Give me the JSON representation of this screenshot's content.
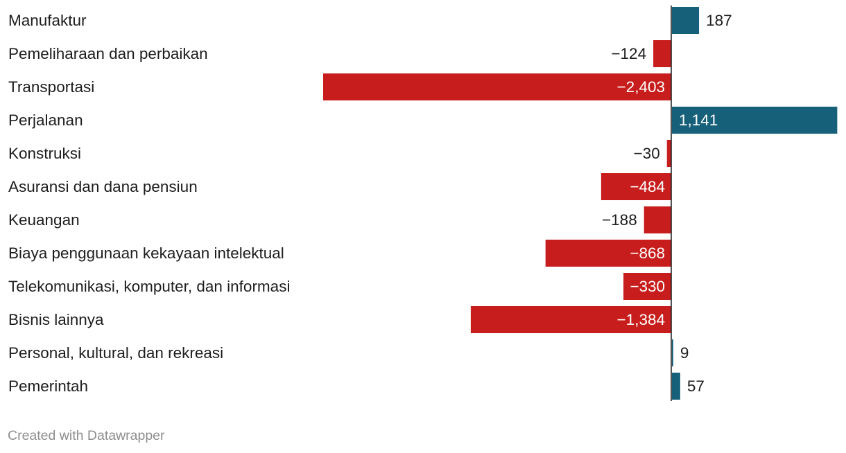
{
  "chart_data": {
    "type": "bar",
    "orientation": "horizontal",
    "categories": [
      "Manufaktur",
      "Pemeliharaan dan perbaikan",
      "Transportasi",
      "Perjalanan",
      "Konstruksi",
      "Asuransi dan dana pensiun",
      "Keuangan",
      "Biaya penggunaan kekayaan intelektual",
      "Telekomunikasi, komputer, dan informasi",
      "Bisnis lainnya",
      "Personal, kultural, dan rekreasi",
      "Pemerintah"
    ],
    "values": [
      187,
      -124,
      -2403,
      1141,
      -30,
      -484,
      -188,
      -868,
      -330,
      -1384,
      9,
      57
    ],
    "value_labels": [
      "187",
      "−124",
      "−2,403",
      "1,141",
      "−30",
      "−484",
      "−188",
      "−868",
      "−330",
      "−1,384",
      "9",
      "57"
    ],
    "xlim": [
      -2403,
      1141
    ],
    "title": "",
    "xlabel": "",
    "ylabel": "",
    "grid": false,
    "legend": "none"
  },
  "colors": {
    "positive": "#17607a",
    "negative": "#c71e1d",
    "baseline": "#1d1d1d",
    "text": "#1d1d1d",
    "footer": "#8e8e8e"
  },
  "footer": {
    "text": "Created with Datawrapper"
  }
}
